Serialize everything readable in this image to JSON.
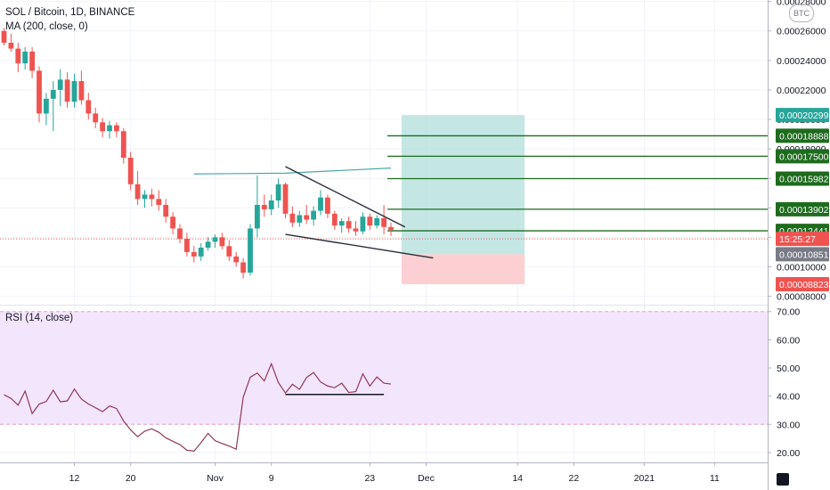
{
  "legend": {
    "symbol_line": "SOL / Bitcoin, 1D, BINANCE",
    "ma_line": "MA (200, close, 0)",
    "rsi_line": "RSI (14, close)"
  },
  "currency_badge": "BTC",
  "colors": {
    "up": "#26a69a",
    "down": "#ef5350",
    "target_zone": "#b2dfdb",
    "stop_zone": "#fccbcd",
    "level_line": "#1e6b1e",
    "level_tag": "#1e6b1e",
    "rsi_band": "#f3e5fc",
    "rsi_line": "#8e3a59",
    "pattern_line": "#2a2e39",
    "ma_line": "#4aa7a7"
  },
  "chart_data": [
    {
      "type": "candlestick",
      "title": "SOL / Bitcoin, 1D, BINANCE",
      "ylim": [
        7.55e-05,
        0.000281
      ],
      "xlim": [
        0,
        107.5
      ],
      "x_ticks": [
        {
          "i": 10,
          "label": "12"
        },
        {
          "i": 18,
          "label": "20"
        },
        {
          "i": 30,
          "label": "Nov"
        },
        {
          "i": 38,
          "label": "9"
        },
        {
          "i": 52,
          "label": "23"
        },
        {
          "i": 60,
          "label": "Dec"
        },
        {
          "i": 73,
          "label": "14"
        },
        {
          "i": 81,
          "label": "22"
        },
        {
          "i": 91,
          "label": "2021"
        },
        {
          "i": 101,
          "label": "11"
        }
      ],
      "y_ticks": [
        {
          "v": 8e-05,
          "label": "0.00008000"
        },
        {
          "v": 0.0001,
          "label": "0.00010000"
        },
        {
          "v": 0.00012,
          "label": "0.00012000"
        },
        {
          "v": 0.00014,
          "label": "0.00014000"
        },
        {
          "v": 0.00016,
          "label": "0.00016000"
        },
        {
          "v": 0.00018,
          "label": "0.00018000"
        },
        {
          "v": 0.0002,
          "label": "0.00020000"
        },
        {
          "v": 0.00022,
          "label": "0.00022000"
        },
        {
          "v": 0.00024,
          "label": "0.00024000"
        },
        {
          "v": 0.00026,
          "label": "0.00026000"
        },
        {
          "v": 0.00028,
          "label": "0.00028000"
        }
      ],
      "price_tags": [
        {
          "v": 0.00020299,
          "label": "0.00020299",
          "color": "#26a69a"
        },
        {
          "v": 0.00018888,
          "label": "0.00018888",
          "color": "#1e6b1e"
        },
        {
          "v": 0.000175,
          "label": "0.00017500",
          "color": "#1e6b1e"
        },
        {
          "v": 0.00015982,
          "label": "0.00015982",
          "color": "#1e6b1e"
        },
        {
          "v": 0.00013902,
          "label": "0.00013902",
          "color": "#1e6b1e"
        },
        {
          "v": 0.00012441,
          "label": "0.00012441",
          "color": "#1e6b1e"
        },
        {
          "v": 0.00011895,
          "label": "15:25:27",
          "color": "#ef5350"
        },
        {
          "v": 0.00010851,
          "label": "0.00010851",
          "color": "#787b86"
        },
        {
          "v": 8.823e-05,
          "label": "0.00008823",
          "color": "#ef5350"
        }
      ],
      "ohlc": [
        [
          0.00026,
          0.000262,
          0.00025,
          0.000252
        ],
        [
          0.000252,
          0.000258,
          0.000246,
          0.000248
        ],
        [
          0.000248,
          0.000252,
          0.000232,
          0.000238
        ],
        [
          0.000238,
          0.000249,
          0.000234,
          0.000246
        ],
        [
          0.000246,
          0.000249,
          0.000228,
          0.000233
        ],
        [
          0.000233,
          0.000236,
          0.000198,
          0.000204
        ],
        [
          0.000204,
          0.000218,
          0.000196,
          0.000214
        ],
        [
          0.000214,
          0.000226,
          0.000192,
          0.00022
        ],
        [
          0.00022,
          0.000234,
          0.000209,
          0.000227
        ],
        [
          0.000227,
          0.000232,
          0.000208,
          0.000212
        ],
        [
          0.000212,
          0.000231,
          0.000208,
          0.000226
        ],
        [
          0.000226,
          0.000233,
          0.00021,
          0.000213
        ],
        [
          0.000213,
          0.000218,
          0.0002,
          0.000204
        ],
        [
          0.000204,
          0.000208,
          0.000194,
          0.000198
        ],
        [
          0.000198,
          0.000201,
          0.000188,
          0.000192
        ],
        [
          0.000192,
          0.000199,
          0.000187,
          0.000196
        ],
        [
          0.000196,
          0.000198,
          0.000188,
          0.000192
        ],
        [
          0.000192,
          0.000194,
          0.00017,
          0.000174
        ],
        [
          0.000174,
          0.000178,
          0.000152,
          0.000156
        ],
        [
          0.000156,
          0.000165,
          0.000142,
          0.000146
        ],
        [
          0.000146,
          0.000152,
          0.00014,
          0.000149
        ],
        [
          0.000149,
          0.000153,
          0.000141,
          0.000146
        ],
        [
          0.000146,
          0.000152,
          0.000138,
          0.000142
        ],
        [
          0.000142,
          0.000146,
          0.00013,
          0.000134
        ],
        [
          0.000134,
          0.000137,
          0.000122,
          0.000126
        ],
        [
          0.000126,
          0.000129,
          0.000116,
          0.000119
        ],
        [
          0.000119,
          0.000123,
          0.000107,
          0.00011
        ],
        [
          0.00011,
          0.000114,
          0.000103,
          0.000107
        ],
        [
          0.000107,
          0.000116,
          0.000104,
          0.000113
        ],
        [
          0.000113,
          0.00012,
          0.000111,
          0.000117
        ],
        [
          0.000117,
          0.000122,
          0.000113,
          0.00012
        ],
        [
          0.00012,
          0.000123,
          0.000112,
          0.000114
        ],
        [
          0.000114,
          0.000118,
          0.000104,
          0.000107
        ],
        [
          0.000107,
          0.00011,
          0.0001,
          0.000103
        ],
        [
          0.000103,
          0.000106,
          9.2e-05,
          9.6e-05
        ],
        [
          9.6e-05,
          0.000129,
          9.4e-05,
          0.000126
        ],
        [
          0.000126,
          0.000162,
          0.00012,
          0.000142
        ],
        [
          0.000142,
          0.000149,
          0.000134,
          0.000139
        ],
        [
          0.000139,
          0.000149,
          0.000135,
          0.000145
        ],
        [
          0.000145,
          0.00016,
          0.00014,
          0.000156
        ],
        [
          0.000156,
          0.000157,
          0.000133,
          0.000136
        ],
        [
          0.000136,
          0.000141,
          0.000127,
          0.00013
        ],
        [
          0.00013,
          0.000138,
          0.000127,
          0.000135
        ],
        [
          0.000135,
          0.000142,
          0.000129,
          0.000132
        ],
        [
          0.000132,
          0.000141,
          0.000128,
          0.000138
        ],
        [
          0.000138,
          0.000152,
          0.000135,
          0.000147
        ],
        [
          0.000147,
          0.000149,
          0.000133,
          0.000136
        ],
        [
          0.000136,
          0.000138,
          0.000125,
          0.000128
        ],
        [
          0.000128,
          0.000133,
          0.000123,
          0.000131
        ],
        [
          0.000131,
          0.000134,
          0.000123,
          0.000126
        ],
        [
          0.000126,
          0.000131,
          0.000121,
          0.000124
        ],
        [
          0.000124,
          0.000137,
          0.000122,
          0.000134
        ],
        [
          0.000134,
          0.000136,
          0.000125,
          0.000128
        ],
        [
          0.000128,
          0.000135,
          0.000126,
          0.000133
        ],
        [
          0.000133,
          0.000142,
          0.000122,
          0.000127
        ],
        [
          0.000127,
          0.00013,
          0.000121,
          0.000125
        ]
      ],
      "moving_average": {
        "label": "MA (200, close, 0)",
        "points": [
          [
            27,
            0.000163
          ],
          [
            40,
            0.0001635
          ],
          [
            55,
            0.000167
          ]
        ]
      },
      "drawings": {
        "triangle_upper": [
          [
            40,
            0.000168
          ],
          [
            57,
            0.000127
          ]
        ],
        "triangle_lower": [
          [
            40,
            0.000122
          ],
          [
            61,
            0.000106
          ]
        ],
        "position_box": {
          "x_start": 56.5,
          "x_end": 74,
          "entry": 0.00010851,
          "target": 0.00020299,
          "stop": 8.823e-05
        },
        "levels": [
          0.00018888,
          0.000175,
          0.00015982,
          0.00013902,
          0.00012441
        ],
        "level_x_start": 54.5,
        "last_price_line": 0.00011895
      }
    },
    {
      "type": "line",
      "title": "RSI (14, close)",
      "ylim": [
        16.5,
        71.5
      ],
      "y_ticks": [
        20,
        30,
        40,
        50,
        60,
        70
      ],
      "y_tick_labels": [
        "20.00",
        "30.00",
        "40.00",
        "50.00",
        "60.00",
        "70.00"
      ],
      "band": [
        30,
        70
      ],
      "values": [
        40.5,
        39.2,
        36.8,
        41.8,
        33.8,
        37.2,
        38.1,
        42.1,
        38.0,
        38.3,
        42.5,
        39.0,
        37.2,
        35.9,
        34.5,
        36.5,
        35.6,
        31.2,
        28.0,
        25.6,
        27.6,
        28.4,
        27.2,
        25.2,
        24.0,
        22.8,
        20.8,
        20.5,
        23.5,
        26.8,
        24.2,
        23.2,
        22.3,
        21.2,
        39.6,
        46.7,
        48.2,
        45.4,
        51.5,
        44.8,
        41.1,
        44.2,
        42.4,
        46.6,
        48.4,
        45.0,
        43.6,
        43.0,
        44.6,
        41.3,
        41.6,
        47.9,
        43.6,
        46.8,
        44.6,
        44.3
      ],
      "support_line": {
        "x_start": 40,
        "x_end": 54,
        "y": 40.6
      }
    }
  ]
}
